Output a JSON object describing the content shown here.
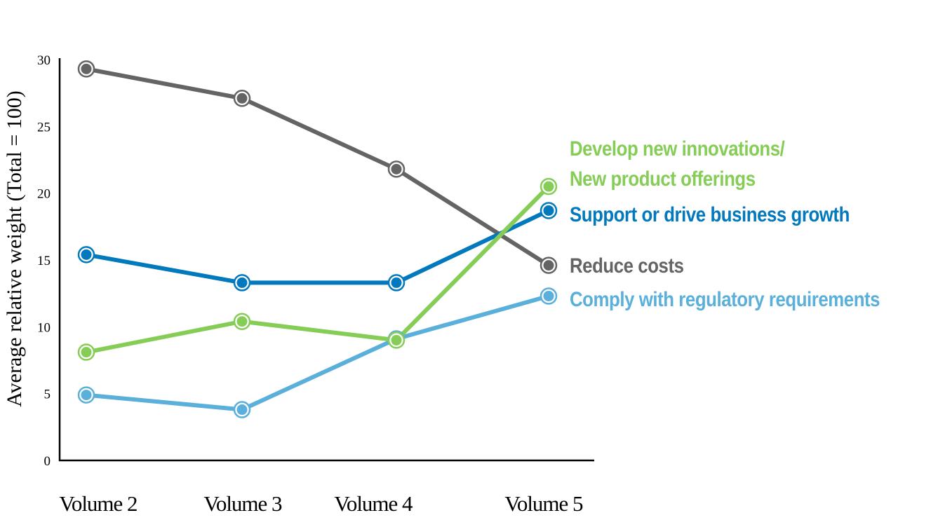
{
  "chart_data": {
    "type": "line",
    "title": "",
    "xlabel": "",
    "ylabel": "Average relative weight (Total = 100)",
    "categories": [
      "Volume 2",
      "Volume 3",
      "Volume 4",
      "Volume 5"
    ],
    "ylim": [
      0,
      30
    ],
    "yticks": [
      0,
      5,
      10,
      15,
      20,
      25,
      30
    ],
    "grid": false,
    "legend": "direct-labels-right",
    "series": [
      {
        "name": "Reduce costs",
        "label_lines": [
          "Reduce costs"
        ],
        "color": "#646464",
        "values": [
          29.3,
          27.1,
          21.8,
          14.6
        ]
      },
      {
        "name": "Support or drive business growth",
        "label_lines": [
          "Support or drive business growth"
        ],
        "color": "#0278bd",
        "values": [
          15.4,
          13.3,
          13.3,
          18.7
        ]
      },
      {
        "name": "Develop new innovations/ New product offerings",
        "label_lines": [
          "Develop new innovations/",
          "New product offerings"
        ],
        "color": "#86cd57",
        "values": [
          8.1,
          10.4,
          9.0,
          20.5
        ]
      },
      {
        "name": "Comply with regulatory requirements",
        "label_lines": [
          "Comply with regulatory requirements"
        ],
        "color": "#5ab0da",
        "values": [
          4.9,
          3.8,
          9.1,
          12.3
        ]
      }
    ]
  }
}
